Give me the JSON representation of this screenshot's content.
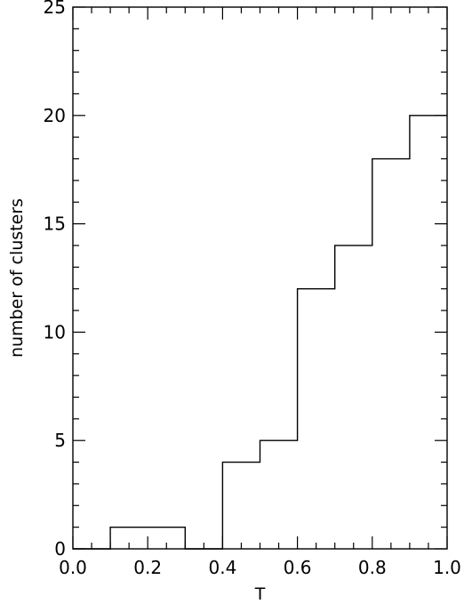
{
  "chart_data": {
    "type": "histogram",
    "title": "",
    "xlabel": "T",
    "ylabel": "number of clusters",
    "xlim": [
      0.0,
      1.0
    ],
    "ylim": [
      0,
      25
    ],
    "bin_edges": [
      0.0,
      0.1,
      0.2,
      0.3,
      0.4,
      0.5,
      0.6,
      0.7,
      0.8,
      0.9,
      1.0
    ],
    "values": [
      0,
      1,
      1,
      0,
      4,
      5,
      12,
      14,
      18,
      20
    ],
    "x_major_ticks": [
      0.0,
      0.2,
      0.4,
      0.6,
      0.8,
      1.0
    ],
    "x_tick_labels": [
      "0.0",
      "0.2",
      "0.4",
      "0.6",
      "0.8",
      "1.0"
    ],
    "x_minor_step": 0.05,
    "y_major_ticks": [
      0,
      5,
      10,
      15,
      20,
      25
    ],
    "y_tick_labels": [
      "0",
      "5",
      "10",
      "15",
      "20",
      "25"
    ],
    "y_minor_step": 1,
    "grid": false,
    "legend": "none",
    "colors": {
      "line": "#000000",
      "background": "#ffffff"
    }
  }
}
